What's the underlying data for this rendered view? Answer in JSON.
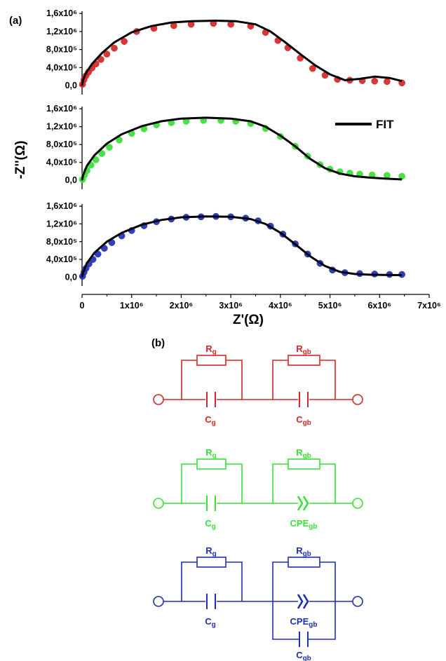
{
  "panel_a_label": "(a)",
  "panel_b_label": "(b)",
  "colors": {
    "red": "#d42626",
    "green": "#38e038",
    "blue": "#1f2fb4",
    "fit": "#000000"
  },
  "chart_data": {
    "type": "scatter",
    "ylabel": "-Z''(Ω)",
    "xlabel": "Z'(Ω)",
    "legend": {
      "entries": [
        "FIT"
      ],
      "placement": "top-right of middle panel"
    },
    "xlim": [
      0,
      7000000
    ],
    "ylim": [
      -200000,
      1650000
    ],
    "x_ticks": [
      {
        "value": 0,
        "label": "0"
      },
      {
        "value": 1000000,
        "label": "1x10⁶"
      },
      {
        "value": 2000000,
        "label": "2x10⁶"
      },
      {
        "value": 3000000,
        "label": "3x10⁶"
      },
      {
        "value": 4000000,
        "label": "4x10⁶"
      },
      {
        "value": 5000000,
        "label": "5x10⁶"
      },
      {
        "value": 6000000,
        "label": "6x10⁶"
      },
      {
        "value": 7000000,
        "label": "7x10⁶"
      }
    ],
    "y_ticks": [
      {
        "value": 0,
        "label": "0,0"
      },
      {
        "value": 400000,
        "label": "4,0x10⁵"
      },
      {
        "value": 800000,
        "label": "8,0x10⁵"
      },
      {
        "value": 1200000,
        "label": "1,2x10⁶"
      },
      {
        "value": 1600000,
        "label": "1,6x10⁶"
      }
    ],
    "panels": [
      {
        "color": "red",
        "points": [
          [
            10000,
            30000
          ],
          [
            40000,
            130000
          ],
          [
            80000,
            220000
          ],
          [
            130000,
            300000
          ],
          [
            200000,
            390000
          ],
          [
            280000,
            480000
          ],
          [
            380000,
            580000
          ],
          [
            500000,
            700000
          ],
          [
            650000,
            830000
          ],
          [
            850000,
            980000
          ],
          [
            1100000,
            1200000
          ],
          [
            1450000,
            1270000
          ],
          [
            1850000,
            1330000
          ],
          [
            2200000,
            1360000
          ],
          [
            2650000,
            1380000
          ],
          [
            3000000,
            1360000
          ],
          [
            3400000,
            1320000
          ],
          [
            3700000,
            1180000
          ],
          [
            3950000,
            1000000
          ],
          [
            4150000,
            840000
          ],
          [
            4400000,
            610000
          ],
          [
            4650000,
            380000
          ],
          [
            4900000,
            230000
          ],
          [
            5150000,
            140000
          ],
          [
            5400000,
            120000
          ],
          [
            5650000,
            110000
          ],
          [
            5900000,
            100000
          ],
          [
            6150000,
            90000
          ],
          [
            6450000,
            60000
          ]
        ],
        "fit": [
          [
            0,
            0
          ],
          [
            20000,
            120000
          ],
          [
            80000,
            280000
          ],
          [
            200000,
            480000
          ],
          [
            400000,
            720000
          ],
          [
            650000,
            960000
          ],
          [
            1000000,
            1180000
          ],
          [
            1400000,
            1320000
          ],
          [
            1800000,
            1400000
          ],
          [
            2200000,
            1430000
          ],
          [
            2700000,
            1440000
          ],
          [
            3100000,
            1430000
          ],
          [
            3500000,
            1360000
          ],
          [
            3800000,
            1200000
          ],
          [
            4100000,
            960000
          ],
          [
            4400000,
            700000
          ],
          [
            4700000,
            450000
          ],
          [
            5000000,
            250000
          ],
          [
            5300000,
            120000
          ],
          [
            5600000,
            150000
          ],
          [
            5900000,
            200000
          ],
          [
            6200000,
            170000
          ],
          [
            6450000,
            100000
          ]
        ]
      },
      {
        "color": "green",
        "points": [
          [
            10000,
            20000
          ],
          [
            50000,
            120000
          ],
          [
            100000,
            220000
          ],
          [
            180000,
            340000
          ],
          [
            280000,
            460000
          ],
          [
            400000,
            600000
          ],
          [
            550000,
            740000
          ],
          [
            750000,
            900000
          ],
          [
            1000000,
            1050000
          ],
          [
            1250000,
            1150000
          ],
          [
            1500000,
            1240000
          ],
          [
            1800000,
            1290000
          ],
          [
            2100000,
            1320000
          ],
          [
            2450000,
            1340000
          ],
          [
            2800000,
            1340000
          ],
          [
            3100000,
            1320000
          ],
          [
            3400000,
            1270000
          ],
          [
            3700000,
            1160000
          ],
          [
            4000000,
            980000
          ],
          [
            4300000,
            760000
          ],
          [
            4550000,
            540000
          ],
          [
            4800000,
            350000
          ],
          [
            5000000,
            250000
          ],
          [
            5200000,
            190000
          ],
          [
            5400000,
            160000
          ],
          [
            5600000,
            140000
          ],
          [
            5850000,
            120000
          ],
          [
            6150000,
            110000
          ],
          [
            6450000,
            90000
          ]
        ],
        "fit": [
          [
            0,
            0
          ],
          [
            20000,
            110000
          ],
          [
            100000,
            330000
          ],
          [
            250000,
            560000
          ],
          [
            500000,
            820000
          ],
          [
            800000,
            1030000
          ],
          [
            1200000,
            1210000
          ],
          [
            1600000,
            1320000
          ],
          [
            2000000,
            1380000
          ],
          [
            2500000,
            1400000
          ],
          [
            3000000,
            1380000
          ],
          [
            3400000,
            1320000
          ],
          [
            3700000,
            1200000
          ],
          [
            4000000,
            1000000
          ],
          [
            4300000,
            760000
          ],
          [
            4600000,
            480000
          ],
          [
            4900000,
            270000
          ],
          [
            5200000,
            150000
          ],
          [
            5500000,
            90000
          ],
          [
            5800000,
            60000
          ],
          [
            6100000,
            40000
          ],
          [
            6450000,
            20000
          ]
        ]
      },
      {
        "color": "blue",
        "points": [
          [
            10000,
            20000
          ],
          [
            40000,
            110000
          ],
          [
            80000,
            200000
          ],
          [
            140000,
            300000
          ],
          [
            220000,
            400000
          ],
          [
            320000,
            520000
          ],
          [
            450000,
            650000
          ],
          [
            600000,
            780000
          ],
          [
            800000,
            930000
          ],
          [
            1000000,
            1050000
          ],
          [
            1250000,
            1160000
          ],
          [
            1500000,
            1250000
          ],
          [
            1800000,
            1310000
          ],
          [
            2100000,
            1350000
          ],
          [
            2400000,
            1360000
          ],
          [
            2700000,
            1370000
          ],
          [
            3000000,
            1360000
          ],
          [
            3300000,
            1330000
          ],
          [
            3550000,
            1270000
          ],
          [
            3800000,
            1150000
          ],
          [
            4050000,
            970000
          ],
          [
            4300000,
            750000
          ],
          [
            4550000,
            520000
          ],
          [
            4800000,
            310000
          ],
          [
            5050000,
            160000
          ],
          [
            5300000,
            100000
          ],
          [
            5600000,
            80000
          ],
          [
            5900000,
            70000
          ],
          [
            6200000,
            60000
          ],
          [
            6450000,
            60000
          ]
        ],
        "fit": [
          [
            0,
            0
          ],
          [
            20000,
            100000
          ],
          [
            100000,
            320000
          ],
          [
            250000,
            550000
          ],
          [
            500000,
            800000
          ],
          [
            800000,
            1000000
          ],
          [
            1200000,
            1180000
          ],
          [
            1600000,
            1290000
          ],
          [
            2000000,
            1350000
          ],
          [
            2500000,
            1370000
          ],
          [
            3000000,
            1360000
          ],
          [
            3400000,
            1310000
          ],
          [
            3700000,
            1200000
          ],
          [
            4000000,
            1000000
          ],
          [
            4300000,
            740000
          ],
          [
            4600000,
            470000
          ],
          [
            4900000,
            250000
          ],
          [
            5200000,
            120000
          ],
          [
            5500000,
            70000
          ],
          [
            5800000,
            55000
          ],
          [
            6100000,
            50000
          ],
          [
            6450000,
            45000
          ]
        ]
      }
    ]
  },
  "circuits": [
    {
      "color": "red",
      "r1": "R",
      "r1_sub": "g",
      "c1": "C",
      "c1_sub": "g",
      "r2": "R",
      "r2_sub": "gb",
      "e2": "C",
      "e2_sub": "gb",
      "e2_type": "capacitor",
      "extra": null
    },
    {
      "color": "green",
      "r1": "R",
      "r1_sub": "g",
      "c1": "C",
      "c1_sub": "g",
      "r2": "R",
      "r2_sub": "gb",
      "e2": "CPE",
      "e2_sub": "gb",
      "e2_type": "cpe",
      "extra": null
    },
    {
      "color": "blue",
      "r1": "R",
      "r1_sub": "g",
      "c1": "C",
      "c1_sub": "g",
      "r2": "R",
      "r2_sub": "gb",
      "e2": "CPE",
      "e2_sub": "gb",
      "e2_type": "cpe",
      "extra": {
        "c": "C",
        "c_sub": "gb"
      }
    }
  ]
}
